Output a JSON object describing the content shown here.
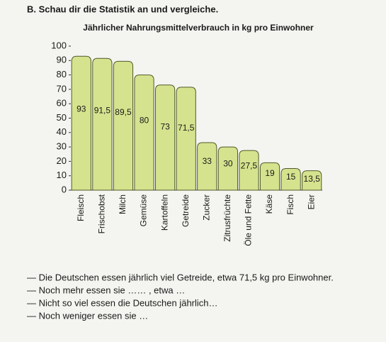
{
  "heading": "B. Schau dir die Statistik an und vergleiche.",
  "chart_data": {
    "type": "bar",
    "title": "Jährlicher Nahrungsmittelverbrauch in kg pro Einwohner",
    "categories": [
      "Fleisch",
      "Frischobst",
      "Milch",
      "Gemüse",
      "Kartoffeln",
      "Getreide",
      "Zucker",
      "Zitrusfrüchte",
      "Öle und Fette",
      "Käse",
      "Fisch",
      "Eier"
    ],
    "values": [
      93,
      91.5,
      89.5,
      80,
      73,
      71.5,
      33,
      30,
      27.5,
      19,
      15,
      13.5
    ],
    "value_labels": [
      "93",
      "91,5",
      "89,5",
      "80",
      "73",
      "71,5",
      "33",
      "30",
      "27,5",
      "19",
      "15",
      "13,5"
    ],
    "color": "#d6e38e",
    "ylim": [
      0,
      100
    ],
    "yticks": [
      0,
      10,
      20,
      30,
      40,
      50,
      60,
      70,
      80,
      90,
      100
    ],
    "grid": false
  },
  "sentences": [
    "— Die Deutschen essen jährlich viel Getreide, etwa 71,5 kg pro Einwohner.",
    "— Noch mehr essen sie …… , etwa …",
    "— Nicht so viel essen die Deutschen jährlich…",
    "— Noch weniger essen sie …"
  ]
}
